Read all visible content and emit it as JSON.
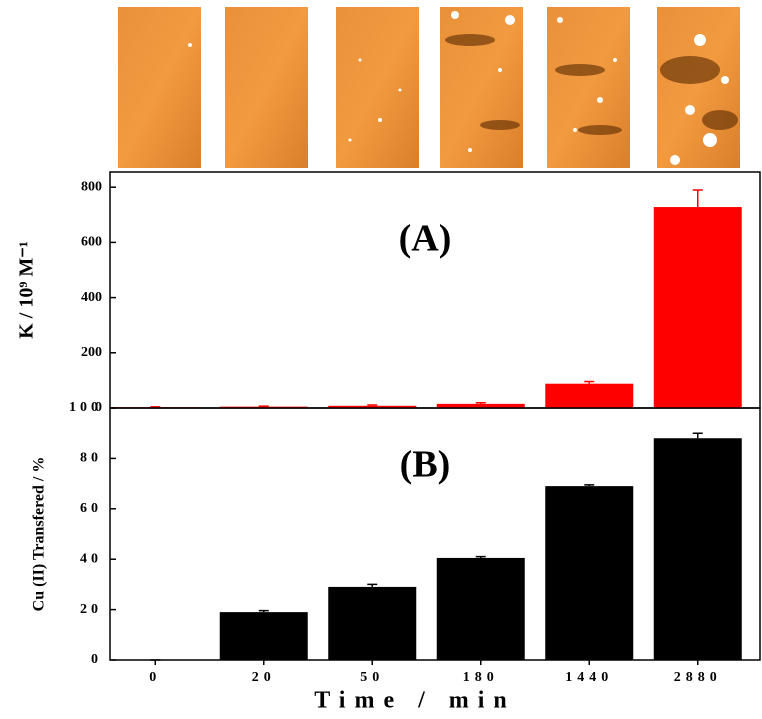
{
  "chart_data": [
    {
      "type": "bar",
      "annotation": "(A)",
      "ylabel": "K / 10⁹ M⁻¹",
      "color": "#ff0000",
      "values": [
        3,
        5,
        8,
        15,
        88,
        728
      ],
      "errors": [
        1,
        2,
        3,
        4,
        8,
        62
      ],
      "ylim": [
        0,
        855
      ],
      "yticks": [
        0,
        200,
        400,
        600,
        800
      ]
    },
    {
      "type": "bar",
      "annotation": "(B)",
      "ylabel": "Cu (II) Transfered / %",
      "xlabel": "Time / min",
      "color": "#000000",
      "categories": [
        "0",
        "20",
        "50",
        "180",
        "1440",
        "2880"
      ],
      "values": [
        0,
        19,
        29,
        40.5,
        69,
        88
      ],
      "errors": [
        0,
        0.6,
        1,
        0.5,
        0.5,
        2
      ],
      "ylim": [
        0,
        100
      ],
      "yticks": [
        0,
        20,
        40,
        60,
        80,
        100
      ]
    }
  ]
}
